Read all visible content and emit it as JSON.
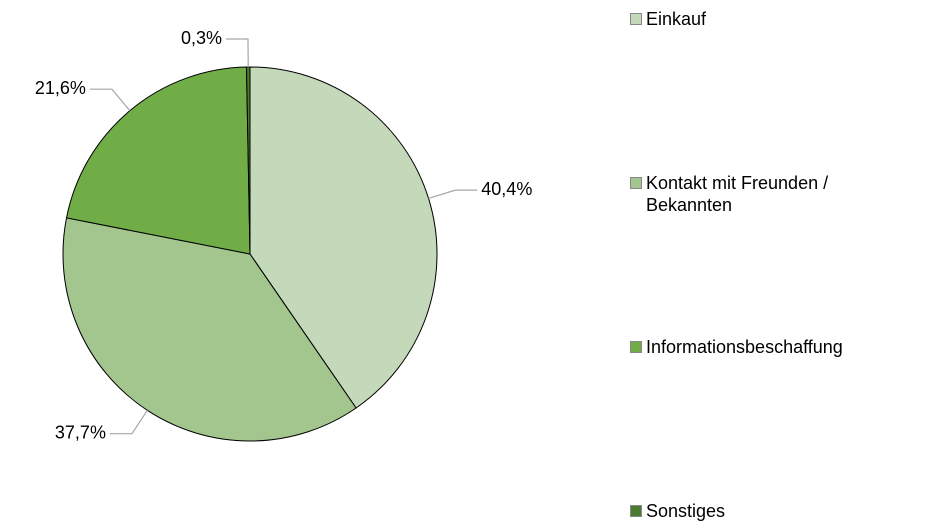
{
  "chart_data": {
    "type": "pie",
    "categories": [
      "Einkauf",
      "Kontakt mit Freunden / Bekannten",
      "Informationsbeschaffung",
      "Sonstiges"
    ],
    "values": [
      40.4,
      37.7,
      21.6,
      0.3
    ],
    "value_labels": [
      "40,4%",
      "37,7%",
      "21,6%",
      "0,3%"
    ],
    "colors": [
      "#c4d9b9",
      "#a3c68f",
      "#70ad47",
      "#4a7c2f"
    ],
    "legend": "right"
  }
}
